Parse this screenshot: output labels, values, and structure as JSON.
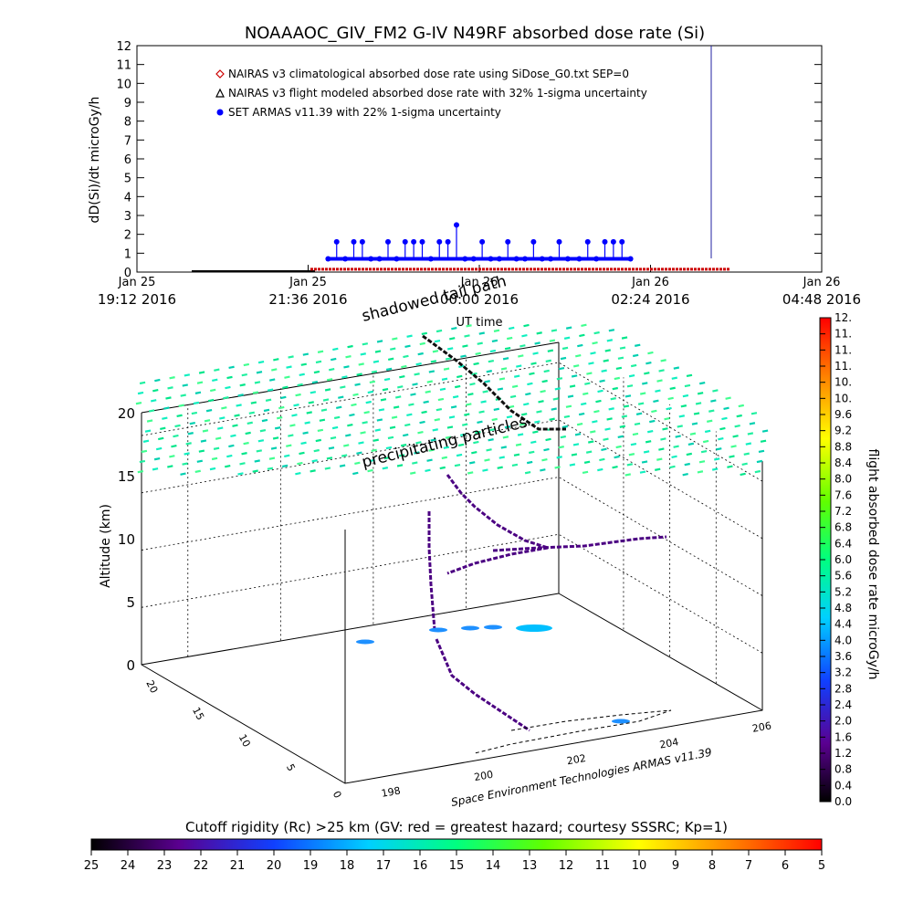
{
  "chart_data": [
    {
      "type": "scatter",
      "title": "NOAAAOC_GIV_FM2 G-IV   N49RF  absorbed dose rate (Si)",
      "ylabel": "dD(Si)/dt microGy/h",
      "xlabel": "UT time",
      "ylim": [
        0,
        12
      ],
      "yticks": [
        0,
        1,
        2,
        3,
        4,
        5,
        6,
        7,
        8,
        9,
        10,
        11,
        12
      ],
      "xticks": [
        {
          "line1": "Jan 25",
          "line2": "19:12 2016"
        },
        {
          "line1": "Jan 25",
          "line2": "21:36 2016"
        },
        {
          "line1": "Jan 26",
          "line2": "00:00 2016"
        },
        {
          "line1": "Jan 26",
          "line2": "02:24 2016"
        },
        {
          "line1": "Jan 26",
          "line2": "04:48 2016"
        }
      ],
      "legend": [
        {
          "label": "NAIRAS v3 climatological absorbed dose rate using SiDose_G0.txt SEP=0",
          "color": "#cc0000",
          "marker": "diamond"
        },
        {
          "label": "NAIRAS v3 flight modeled absorbed dose rate with 32% 1-sigma uncertainty",
          "color": "#000000",
          "marker": "triangle"
        },
        {
          "label": "SET ARMAS v11.39 with 22% 1-sigma uncertainty",
          "color": "#0000ff",
          "marker": "dot"
        }
      ],
      "series": [
        {
          "name": "SET ARMAS v11.39 with 22% 1-sigma uncertainty",
          "x_hours": [
            3.35,
            3.5,
            3.65,
            3.8,
            3.95,
            4.1,
            4.25,
            4.4,
            4.55,
            4.7,
            4.85,
            5.0,
            5.15,
            5.3,
            5.45,
            5.6,
            5.75,
            5.9,
            6.05,
            6.2,
            6.35,
            6.5,
            6.65,
            6.8,
            6.95,
            7.1,
            7.25,
            7.4,
            7.55,
            7.75,
            7.9,
            8.05,
            8.2,
            8.35,
            8.5,
            8.65
          ],
          "values": [
            0.7,
            1.6,
            0.7,
            1.6,
            1.6,
            0.7,
            0.7,
            1.6,
            0.7,
            1.6,
            1.6,
            1.6,
            0.7,
            1.6,
            1.6,
            2.5,
            0.7,
            0.7,
            1.6,
            0.7,
            0.7,
            1.6,
            0.7,
            0.7,
            1.6,
            0.7,
            0.7,
            1.6,
            0.7,
            0.7,
            1.6,
            0.7,
            1.6,
            1.6,
            1.6,
            0.7
          ]
        }
      ]
    },
    {
      "type": "scatter",
      "title": "",
      "zlabel": "Altitude (km)",
      "zticks": [
        0,
        5,
        10,
        15,
        20
      ],
      "xticks": [
        198,
        200,
        202,
        204,
        206
      ],
      "yticks": [
        0,
        5,
        10,
        15,
        20
      ],
      "annotations": [
        "shadowed tail path",
        "precipitating particles"
      ],
      "credit": "Space Environment Technologies ARMAS v11.39",
      "colorbar_label": "flight absorbed dose rate microGy/h",
      "colorbar_ticks": [
        "0.0",
        "0.4",
        "0.8",
        "1.2",
        "1.6",
        "2.0",
        "2.4",
        "2.8",
        "3.2",
        "3.6",
        "4.0",
        "4.4",
        "4.8",
        "5.2",
        "5.6",
        "6.0",
        "6.4",
        "6.8",
        "7.2",
        "7.6",
        "8.0",
        "8.4",
        "8.8",
        "9.2",
        "9.6",
        "10.",
        "10.",
        "11.",
        "11.",
        "11.",
        "12."
      ],
      "cutoff_title": "Cutoff rigidity (Rc) >25 km (GV: red = greatest hazard; courtesy SSSRC; Kp=1)",
      "cutoff_ticks": [
        "25",
        "24",
        "23",
        "22",
        "21",
        "20",
        "19",
        "18",
        "17",
        "16",
        "15",
        "14",
        "13",
        "12",
        "11",
        "10",
        "9",
        "8",
        "7",
        "6",
        "5"
      ]
    }
  ]
}
